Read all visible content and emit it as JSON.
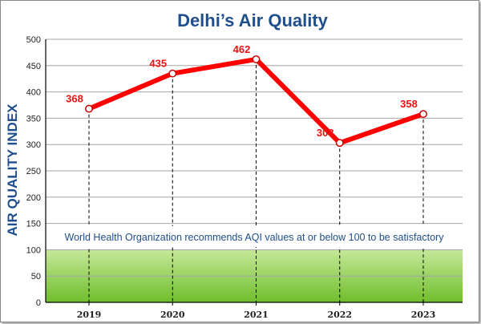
{
  "chart_data": {
    "type": "line",
    "title": "Delhi’s Air Quality",
    "ylabel": "AIR QUALITY INDEX",
    "xlabel": "",
    "ylim": [
      0,
      500
    ],
    "yticks": [
      0,
      50,
      100,
      150,
      200,
      250,
      300,
      350,
      400,
      450,
      500
    ],
    "categories": [
      "2019",
      "2020",
      "2021",
      "2022",
      "2023"
    ],
    "values": [
      368,
      435,
      462,
      303,
      358
    ],
    "data_labels": [
      "368",
      "435",
      "462",
      "303",
      "358"
    ],
    "grid": true,
    "satisfactory_threshold": 100,
    "annotation": "World Health Organization recommends AQI values at or below 100 to be satisfactory",
    "colors": {
      "line": "#ff0000",
      "data_label": "#ee1111",
      "title": "#1f4e8c",
      "annotation_text": "#1f4e8c",
      "band_top": "#c6e89a",
      "band_bottom": "#6fbe2c"
    }
  }
}
